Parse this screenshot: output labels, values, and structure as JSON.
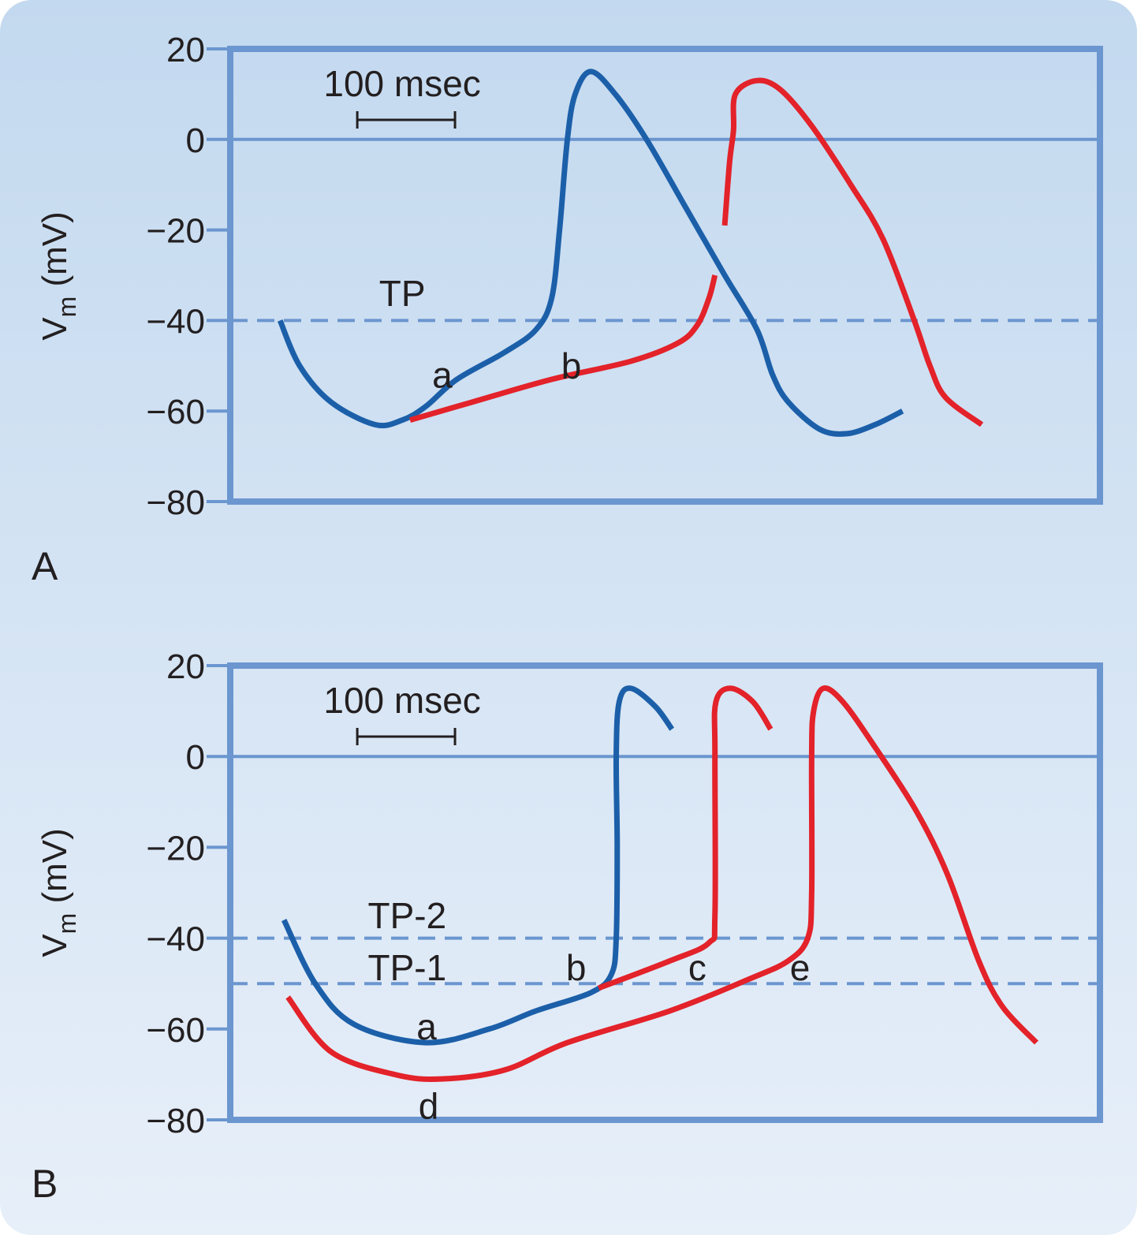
{
  "colors": {
    "background_top": "#c3d9ef",
    "background_bottom": "#e7eff9",
    "axis": "#6b96cf",
    "blue": "#1c5fa9",
    "red": "#e3222a"
  },
  "chart_data": [
    {
      "type": "line",
      "panel_label": "A",
      "ylabel": "Vm (mV)",
      "ylabel_main": "V",
      "ylabel_sub": "m",
      "ylabel_rest": " (mV)",
      "ylim": [
        -80,
        20
      ],
      "xlim_ms": [
        0,
        890
      ],
      "yticks": [
        20,
        0,
        -20,
        -40,
        -60,
        -80
      ],
      "ytick_labels": [
        "20",
        "0",
        "−20",
        "−40",
        "−60",
        "−80"
      ],
      "zero_line": 0,
      "dashed_lines": [
        -40
      ],
      "scale_bar": {
        "label": "100 msec",
        "ms": 100,
        "start_ms": 130
      },
      "annotations": [
        {
          "text": "TP",
          "x": 176,
          "y": -34
        },
        {
          "text": "a",
          "x": 217,
          "y": -52
        },
        {
          "text": "b",
          "x": 349,
          "y": -50
        }
      ],
      "series": [
        {
          "color": "blue",
          "segments": [
            [
              [
                51,
                -40
              ],
              [
                71,
                -50
              ],
              [
                103,
                -58
              ],
              [
                148,
                -63
              ],
              [
                176,
                -62
              ],
              [
                200,
                -59
              ],
              [
                232,
                -53
              ],
              [
                281,
                -47
              ],
              [
                313,
                -42
              ],
              [
                329,
                -35
              ],
              [
                337,
                -20
              ],
              [
                345,
                0
              ],
              [
                353,
                10
              ],
              [
                369,
                15
              ],
              [
                394,
                10
              ],
              [
                426,
                0
              ],
              [
                466,
                -15
              ],
              [
                506,
                -30
              ],
              [
                539,
                -42
              ],
              [
                555,
                -52
              ],
              [
                571,
                -58
              ],
              [
                603,
                -64
              ],
              [
                631,
                -65
              ],
              [
                660,
                -63
              ],
              [
                688,
                -60
              ]
            ]
          ]
        },
        {
          "color": "red",
          "segments": [
            [
              [
                184,
                -62
              ],
              [
                248,
                -58
              ],
              [
                329,
                -53
              ],
              [
                410,
                -49
              ],
              [
                458,
                -45
              ],
              [
                478,
                -41
              ],
              [
                490,
                -35
              ],
              [
                496,
                -30
              ]
            ],
            [
              [
                506,
                -19
              ],
              [
                511,
                -5
              ],
              [
                515,
                2
              ],
              [
                517,
                10
              ],
              [
                539,
                13
              ],
              [
                563,
                11
              ],
              [
                595,
                3
              ],
              [
                635,
                -10
              ],
              [
                668,
                -22
              ],
              [
                700,
                -40
              ],
              [
                716,
                -50
              ],
              [
                732,
                -57
              ],
              [
                769,
                -63
              ]
            ]
          ]
        }
      ]
    },
    {
      "type": "line",
      "panel_label": "B",
      "ylabel": "Vm (mV)",
      "ylabel_main": "V",
      "ylabel_sub": "m",
      "ylabel_rest": " (mV)",
      "ylim": [
        -80,
        20
      ],
      "xlim_ms": [
        0,
        890
      ],
      "yticks": [
        20,
        0,
        -20,
        -40,
        -60,
        -80
      ],
      "ytick_labels": [
        "20",
        "0",
        "−20",
        "−40",
        "−60",
        "−80"
      ],
      "zero_line": 0,
      "dashed_lines": [
        -40,
        -50
      ],
      "scale_bar": {
        "label": "100 msec",
        "ms": 100,
        "start_ms": 130
      },
      "annotations": [
        {
          "text": "TP-2",
          "x": 181,
          "y": -35
        },
        {
          "text": "TP-1",
          "x": 181,
          "y": -46.5
        },
        {
          "text": "b",
          "x": 354,
          "y": -46.5
        },
        {
          "text": "c",
          "x": 478,
          "y": -46.5
        },
        {
          "text": "e",
          "x": 583,
          "y": -46.5
        },
        {
          "text": "a",
          "x": 201,
          "y": -59.5
        },
        {
          "text": "d",
          "x": 203,
          "y": -77
        }
      ],
      "series": [
        {
          "color": "blue",
          "segments": [
            [
              [
                55,
                -36
              ],
              [
                87,
                -50
              ],
              [
                127,
                -59
              ],
              [
                200,
                -63
              ],
              [
                265,
                -60
              ],
              [
                313,
                -56
              ],
              [
                369,
                -52
              ],
              [
                390,
                -48
              ],
              [
                395,
                -40
              ],
              [
                396,
                -20
              ],
              [
                395,
                0
              ],
              [
                398,
                12
              ],
              [
                410,
                15
              ],
              [
                435,
                11
              ],
              [
                452,
                6
              ]
            ]
          ]
        },
        {
          "color": "red",
          "segments": [
            [
              [
                377,
                -51
              ],
              [
                450,
                -45
              ],
              [
                490,
                -41
              ],
              [
                496,
                -35
              ],
              [
                496,
                0
              ],
              [
                497,
                12
              ],
              [
                512,
                15
              ],
              [
                535,
                12
              ],
              [
                553,
                6
              ]
            ]
          ]
        },
        {
          "color": "red",
          "segments": [
            [
              [
                59,
                -53
              ],
              [
                103,
                -65
              ],
              [
                168,
                -70
              ],
              [
                216,
                -71
              ],
              [
                281,
                -69
              ],
              [
                345,
                -63
              ],
              [
                450,
                -56
              ],
              [
                531,
                -49
              ],
              [
                571,
                -45
              ],
              [
                591,
                -40
              ],
              [
                595,
                -30
              ],
              [
                595,
                0
              ],
              [
                597,
                10
              ],
              [
                607,
                15
              ],
              [
                627,
                12
              ],
              [
                660,
                2
              ],
              [
                702,
                -12
              ],
              [
                734,
                -26
              ],
              [
                766,
                -45
              ],
              [
                790,
                -55
              ],
              [
                825,
                -63
              ]
            ]
          ]
        }
      ]
    }
  ]
}
